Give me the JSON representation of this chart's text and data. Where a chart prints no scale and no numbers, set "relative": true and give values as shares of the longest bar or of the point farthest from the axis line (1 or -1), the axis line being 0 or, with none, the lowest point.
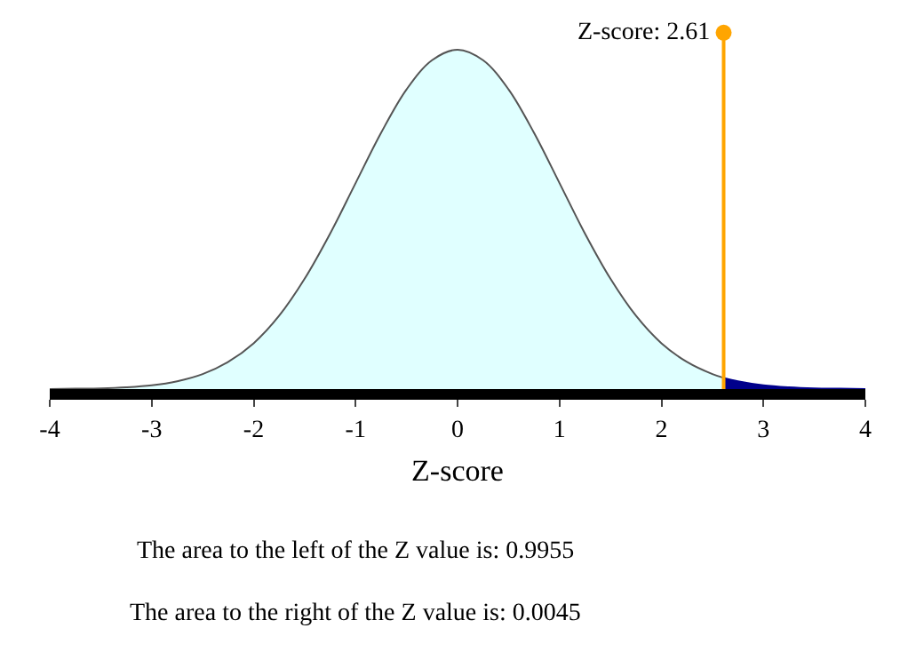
{
  "chart_data": {
    "type": "area",
    "relative": true,
    "xlabel": "Z-score",
    "xlim": [
      -4,
      4
    ],
    "xticks": [
      -4,
      -3,
      -2,
      -1,
      0,
      1,
      2,
      3,
      4
    ],
    "marker": "none",
    "series": [
      {
        "color": "#e0ffff",
        "x": [
          -4,
          -3.75,
          -3.5,
          -3.25,
          -3,
          -2.75,
          -2.5,
          -2.25,
          -2,
          -1.75,
          -1.5,
          -1.25,
          -1,
          -0.75,
          -0.5,
          -0.25,
          0,
          0.25,
          0.5,
          0.75,
          1,
          1.25,
          1.5,
          1.75,
          2,
          2.25,
          2.5,
          2.61
        ],
        "values": [
          0.0,
          0.001,
          0.002,
          0.005,
          0.011,
          0.023,
          0.044,
          0.08,
          0.135,
          0.216,
          0.325,
          0.458,
          0.607,
          0.755,
          0.883,
          0.969,
          1,
          0.969,
          0.883,
          0.755,
          0.607,
          0.458,
          0.325,
          0.216,
          0.135,
          0.08,
          0.044,
          0.033
        ]
      },
      {
        "color": "#00008b",
        "x": [
          2.61,
          2.75,
          3,
          3.25,
          3.5,
          3.75,
          4
        ],
        "values": [
          0.033,
          0.023,
          0.011,
          0.005,
          0.002,
          0.001,
          0.0
        ]
      }
    ],
    "ref_lines": [
      {
        "axis": "x",
        "value": 2.61,
        "label": "Z-score: 2.61",
        "color": "#ffa500",
        "line_style": "solid"
      }
    ],
    "annotations": [
      "The area to the left of the Z value is: 0.9955",
      "The area to the right of the Z value is: 0.0045"
    ]
  }
}
